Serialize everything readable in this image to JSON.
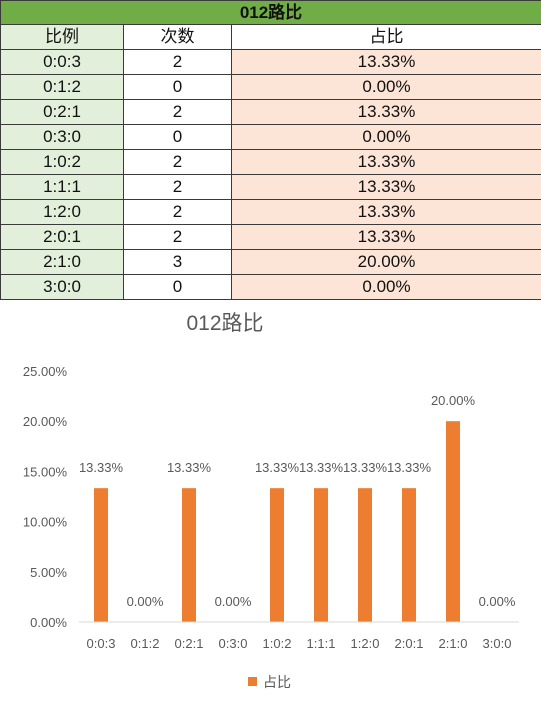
{
  "table": {
    "title": "012路比",
    "headers": [
      "比例",
      "次数",
      "占比"
    ],
    "rows": [
      [
        "0:0:3",
        "2",
        "13.33%"
      ],
      [
        "0:1:2",
        "0",
        "0.00%"
      ],
      [
        "0:2:1",
        "2",
        "13.33%"
      ],
      [
        "0:3:0",
        "0",
        "0.00%"
      ],
      [
        "1:0:2",
        "2",
        "13.33%"
      ],
      [
        "1:1:1",
        "2",
        "13.33%"
      ],
      [
        "1:2:0",
        "2",
        "13.33%"
      ],
      [
        "2:0:1",
        "2",
        "13.33%"
      ],
      [
        "2:1:0",
        "3",
        "20.00%"
      ],
      [
        "3:0:0",
        "0",
        "0.00%"
      ]
    ]
  },
  "chart_data": {
    "type": "bar",
    "title": "012路比",
    "categories": [
      "0:0:3",
      "0:1:2",
      "0:2:1",
      "0:3:0",
      "1:0:2",
      "1:1:1",
      "1:2:0",
      "2:0:1",
      "2:1:0",
      "3:0:0"
    ],
    "series": [
      {
        "name": "占比",
        "values": [
          13.33,
          0,
          13.33,
          0,
          13.33,
          13.33,
          13.33,
          13.33,
          20.0,
          0
        ],
        "labels": [
          "13.33%",
          "0.00%",
          "13.33%",
          "0.00%",
          "13.33%",
          "13.33%",
          "13.33%",
          "13.33%",
          "20.00%",
          "0.00%"
        ]
      }
    ],
    "ylim": [
      0,
      25
    ],
    "yticks": [
      "0.00%",
      "5.00%",
      "10.00%",
      "15.00%",
      "20.00%",
      "25.00%"
    ],
    "ytick_values": [
      0,
      5,
      10,
      15,
      20,
      25
    ],
    "grid": false,
    "legend": "bottom",
    "colors": {
      "bar": "#ed7d31",
      "axis_text": "#595959",
      "axis_line": "#d9d9d9"
    }
  }
}
